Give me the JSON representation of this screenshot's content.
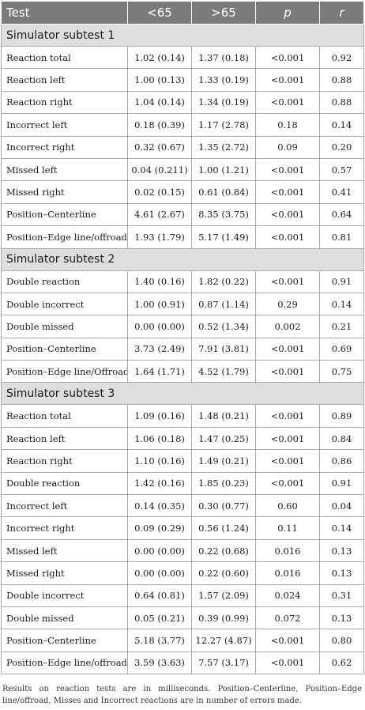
{
  "header": {
    "test": "Test",
    "lt65": "<65",
    "gt65": ">65",
    "p": "p",
    "r": "r"
  },
  "sections": [
    {
      "title": "Simulator subtest 1",
      "rows": [
        [
          "Reaction total",
          "1.02 (0.14)",
          "1.37 (0.18)",
          "<0.001",
          "0.92"
        ],
        [
          "Reaction left",
          "1.00 (0.13)",
          "1.33 (0.19)",
          "<0.001",
          "0.88"
        ],
        [
          "Reaction right",
          "1.04 (0.14)",
          "1.34 (0.19)",
          "<0.001",
          "0.88"
        ],
        [
          "Incorrect left",
          "0.18 (0.39)",
          "1.17 (2.78)",
          "0.18",
          "0.14"
        ],
        [
          "Incorrect right",
          "0.32 (0.67)",
          "1.35 (2.72)",
          "0.09",
          "0.20"
        ],
        [
          "Missed left",
          "0.04 (0.211)",
          "1.00 (1.21)",
          "<0.001",
          "0.57"
        ],
        [
          "Missed right",
          "0.02 (0.15)",
          "0.61 (0.84)",
          "<0.001",
          "0.41"
        ],
        [
          "Position–Centerline",
          "4.61 (2.67)",
          "8.35 (3.75)",
          "<0.001",
          "0.64"
        ],
        [
          "Position–Edge line/offroad",
          "1.93 (1.79)",
          "5.17 (1.49)",
          "<0.001",
          "0.81"
        ]
      ]
    },
    {
      "title": "Simulator subtest 2",
      "rows": [
        [
          "Double reaction",
          "1.40 (0.16)",
          "1.82 (0.22)",
          "<0.001",
          "0.91"
        ],
        [
          "Double incorrect",
          "1.00 (0.91)",
          "0.87 (1.14)",
          "0.29",
          "0.14"
        ],
        [
          "Double missed",
          "0.00 (0.00)",
          "0.52 (1.34)",
          "0.002",
          "0.21"
        ],
        [
          "Position–Centerline",
          "3.73 (2.49)",
          "7.91 (3.81)",
          "<0.001",
          "0.69"
        ],
        [
          "Position–Edge line/Offroad",
          "1.64 (1.71)",
          "4.52 (1.79)",
          "<0.001",
          "0.75"
        ]
      ]
    },
    {
      "title": "Simulator subtest 3",
      "rows": [
        [
          "Reaction total",
          "1.09 (0.16)",
          "1.48 (0.21)",
          "<0.001",
          "0.89"
        ],
        [
          "Reaction left",
          "1.06 (0.18)",
          "1.47 (0.25)",
          "<0.001",
          "0.84"
        ],
        [
          "Reaction right",
          "1.10 (0.16)",
          "1.49 (0.21)",
          "<0.001",
          "0.86"
        ],
        [
          "Double reaction",
          "1.42 (0.16)",
          "1.85 (0.23)",
          "<0.001",
          "0.91"
        ],
        [
          "Incorrect left",
          "0.14 (0.35)",
          "0.30 (0.77)",
          "0.60",
          "0.04"
        ],
        [
          "Incorrect right",
          "0.09 (0.29)",
          "0.56 (1.24)",
          "0.11",
          "0.14"
        ],
        [
          "Missed left",
          "0.00 (0.00)",
          "0.22 (0.68)",
          "0.016",
          "0.13"
        ],
        [
          "Missed right",
          "0.00 (0.00)",
          "0.22 (0.60)",
          "0.016",
          "0.13"
        ],
        [
          "Double incorrect",
          "0.64 (0.81)",
          "1.57 (2.09)",
          "0.024",
          "0.31"
        ],
        [
          "Double missed",
          "0.05 (0.21)",
          "0.39 (0.99)",
          "0.072",
          "0.13"
        ],
        [
          "Position–Centerline",
          "5.18 (3.77)",
          "12.27 (4.87)",
          "<0.001",
          "0.80"
        ],
        [
          "Position–Edge line/offroad",
          "3.59 (3.63)",
          "7.57 (3.17)",
          "<0.001",
          "0.62"
        ]
      ]
    }
  ],
  "footnote": "Results on reaction tests are in milliseconds. Position–Centerline, Position–Edge line/offroad, Misses and Incorrect reactions are in number of errors made."
}
